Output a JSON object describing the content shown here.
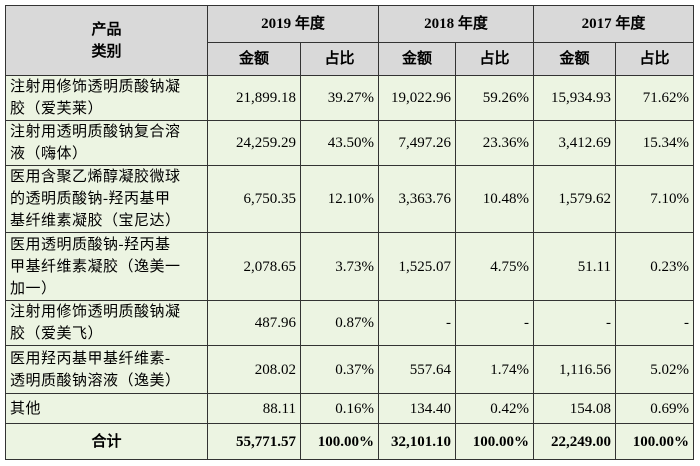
{
  "table": {
    "header": {
      "product": [
        "产品",
        "类别"
      ],
      "years": [
        "2019 年度",
        "2018 年度",
        "2017 年度"
      ],
      "sub": [
        "金额",
        "占比",
        "金额",
        "占比",
        "金额",
        "占比"
      ]
    },
    "rows": [
      {
        "name": [
          "注射用修饰透明质酸钠凝",
          "胶（爱芙莱）"
        ],
        "cells": [
          "21,899.18",
          "39.27%",
          "19,022.96",
          "59.26%",
          "15,934.93",
          "71.62%"
        ]
      },
      {
        "name": [
          "注射用透明质酸钠复合溶",
          "液（嗨体）"
        ],
        "cells": [
          "24,259.29",
          "43.50%",
          "7,497.26",
          "23.36%",
          "3,412.69",
          "15.34%"
        ]
      },
      {
        "name": [
          "医用含聚乙烯醇凝胶微球",
          "的透明质酸钠-羟丙基甲",
          "基纤维素凝胶（宝尼达）"
        ],
        "cells": [
          "6,750.35",
          "12.10%",
          "3,363.76",
          "10.48%",
          "1,579.62",
          "7.10%"
        ]
      },
      {
        "name": [
          "医用透明质酸钠-羟丙基",
          "甲基纤维素凝胶（逸美一",
          "加一）"
        ],
        "cells": [
          "2,078.65",
          "3.73%",
          "1,525.07",
          "4.75%",
          "51.11",
          "0.23%"
        ]
      },
      {
        "name": [
          "注射用修饰透明质酸钠凝",
          "胶（爱美飞）"
        ],
        "cells": [
          "487.96",
          "0.87%",
          "-",
          "-",
          "-",
          "-"
        ]
      },
      {
        "name": [
          "医用羟丙基甲基纤维素-",
          "透明质酸钠溶液（逸美）"
        ],
        "cells": [
          "208.02",
          "0.37%",
          "557.64",
          "1.74%",
          "1,116.56",
          "5.02%"
        ]
      },
      {
        "name": [
          "其他"
        ],
        "cells": [
          "88.11",
          "0.16%",
          "134.40",
          "0.42%",
          "154.08",
          "0.69%"
        ]
      }
    ],
    "total": {
      "name": "合计",
      "cells": [
        "55,771.57",
        "100.00%",
        "32,101.10",
        "100.00%",
        "22,249.00",
        "100.00%"
      ]
    }
  }
}
